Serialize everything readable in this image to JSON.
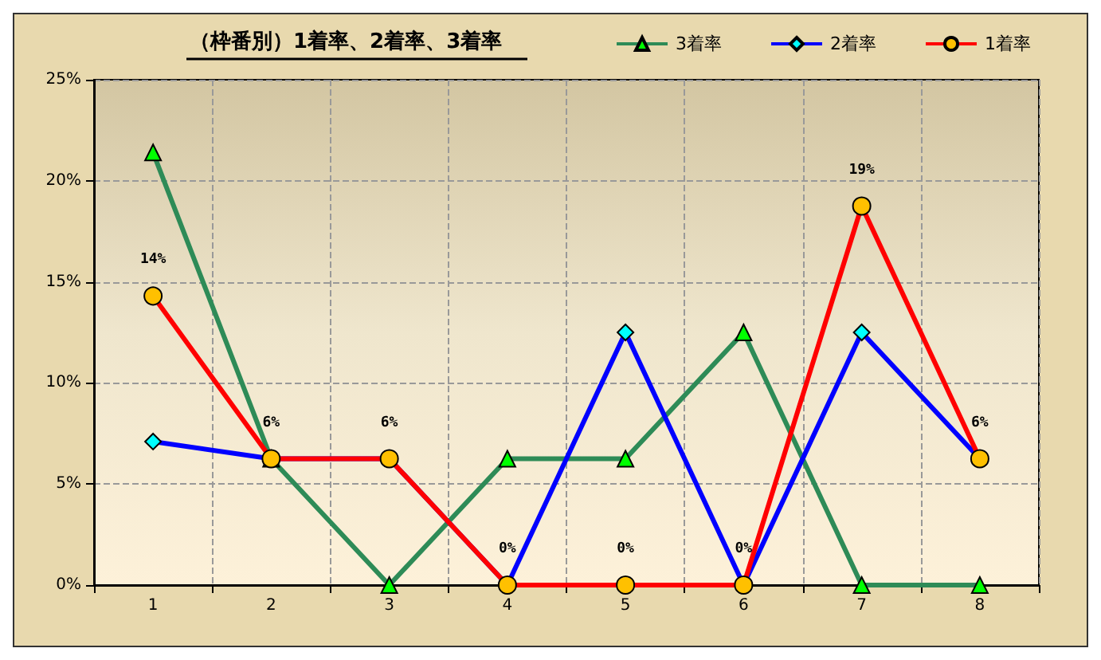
{
  "chart_data": {
    "type": "line",
    "title": "（枠番別）1着率、2着率、3着率",
    "categories": [
      "1",
      "2",
      "3",
      "4",
      "5",
      "6",
      "7",
      "8"
    ],
    "series": [
      {
        "name": "3着率",
        "color": "#2e8b57",
        "marker": "triangle",
        "values": [
          21.4,
          6.25,
          0,
          6.25,
          6.25,
          12.5,
          0,
          0
        ]
      },
      {
        "name": "2着率",
        "color": "#0000ff",
        "marker": "diamond",
        "values": [
          7.1,
          6.25,
          6.25,
          0,
          12.5,
          0,
          12.5,
          6.25
        ]
      },
      {
        "name": "1着率",
        "color": "#ff0000",
        "marker": "circle",
        "values": [
          14.3,
          6.25,
          6.25,
          0,
          0,
          0,
          18.75,
          6.25
        ],
        "value_labels": [
          "14%",
          "6%",
          "6%",
          "0%",
          "0%",
          "0%",
          "19%",
          "6%"
        ]
      }
    ],
    "ylim": [
      0,
      25
    ],
    "yticks": [
      {
        "value": 0,
        "label": "0%"
      },
      {
        "value": 5,
        "label": "5%"
      },
      {
        "value": 10,
        "label": "10%"
      },
      {
        "value": 15,
        "label": "15%"
      },
      {
        "value": 20,
        "label": "20%"
      },
      {
        "value": 25,
        "label": "25%"
      }
    ],
    "grid": true,
    "legend": "top right",
    "line_style": "solid"
  }
}
